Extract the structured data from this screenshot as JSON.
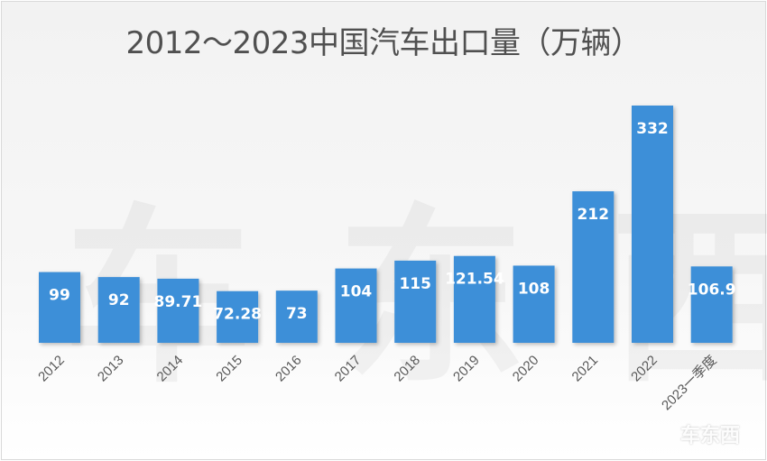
{
  "chart_data": {
    "type": "bar",
    "title": "2012～2023中国汽车出口量（万辆）",
    "categories": [
      "2012",
      "2013",
      "2014",
      "2015",
      "2016",
      "2017",
      "2018",
      "2019",
      "2020",
      "2021",
      "2022",
      "2023一季度"
    ],
    "values": [
      99,
      92,
      89.71,
      72.28,
      73,
      104,
      115,
      121.54,
      108,
      212,
      332,
      106.9
    ],
    "data_labels": [
      "99",
      "92",
      "89.71",
      "72.28",
      "73",
      "104",
      "115",
      "121.54",
      "108",
      "212",
      "332",
      "106.9"
    ],
    "xlabel": "",
    "ylabel": "",
    "ylim": [
      0,
      332
    ],
    "grid": false,
    "legend": "none",
    "bar_color": "#3d8fd8"
  },
  "watermark": "车东西",
  "corner_logo": "车东西"
}
